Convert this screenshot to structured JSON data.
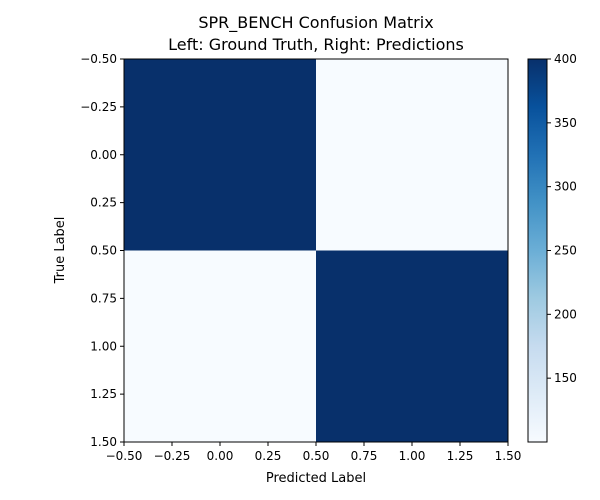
{
  "chart_data": {
    "type": "heatmap",
    "title_lines": [
      "SPR_BENCH Confusion Matrix",
      "Left: Ground Truth, Right: Predictions"
    ],
    "xlabel": "Predicted Label",
    "ylabel": "True Label",
    "xlim": [
      -0.5,
      1.5
    ],
    "ylim": [
      1.5,
      -0.5
    ],
    "x_ticks": [
      "−0.50",
      "−0.25",
      "0.00",
      "0.25",
      "0.50",
      "0.75",
      "1.00",
      "1.25",
      "1.50"
    ],
    "y_ticks": [
      "−0.50",
      "−0.25",
      "0.00",
      "0.25",
      "0.50",
      "0.75",
      "1.00",
      "1.25",
      "1.50"
    ],
    "matrix": [
      [
        400,
        100
      ],
      [
        100,
        400
      ]
    ],
    "colorbar": {
      "colormap": "Blues",
      "range": [
        100,
        400
      ],
      "ticks": [
        "150",
        "200",
        "250",
        "300",
        "350",
        "400"
      ]
    },
    "colors": {
      "high": "#08306b",
      "low": "#f7fbff"
    }
  }
}
